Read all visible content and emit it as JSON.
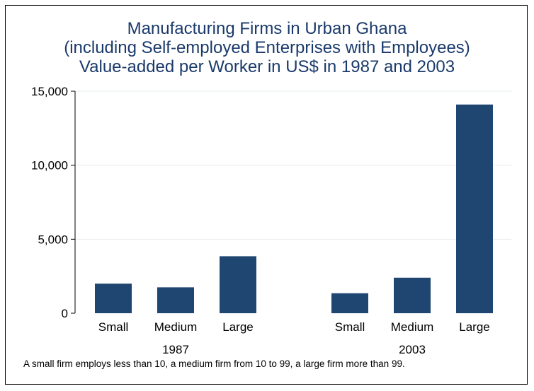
{
  "chart_data": {
    "type": "bar",
    "title": [
      "Manufacturing Firms in Urban Ghana",
      "(including Self-employed Enterprises with Employees)",
      "Value-added per Worker in US$ in 1987 and 2003"
    ],
    "groups": [
      {
        "name": "1987",
        "categories": [
          "Small",
          "Medium",
          "Large"
        ],
        "values": [
          2000,
          1750,
          3850
        ]
      },
      {
        "name": "2003",
        "categories": [
          "Small",
          "Medium",
          "Large"
        ],
        "values": [
          1350,
          2400,
          14100
        ]
      }
    ],
    "ylim": [
      0,
      15000
    ],
    "yticks": [
      0,
      5000,
      10000,
      15000
    ],
    "ytick_labels": [
      "0",
      "5,000",
      "10,000",
      "15,000"
    ],
    "grid": true,
    "bar_color": "#1f4670",
    "note": "A small firm employs less than 10, a medium firm from 10 to 99, a large firm more than 99."
  }
}
